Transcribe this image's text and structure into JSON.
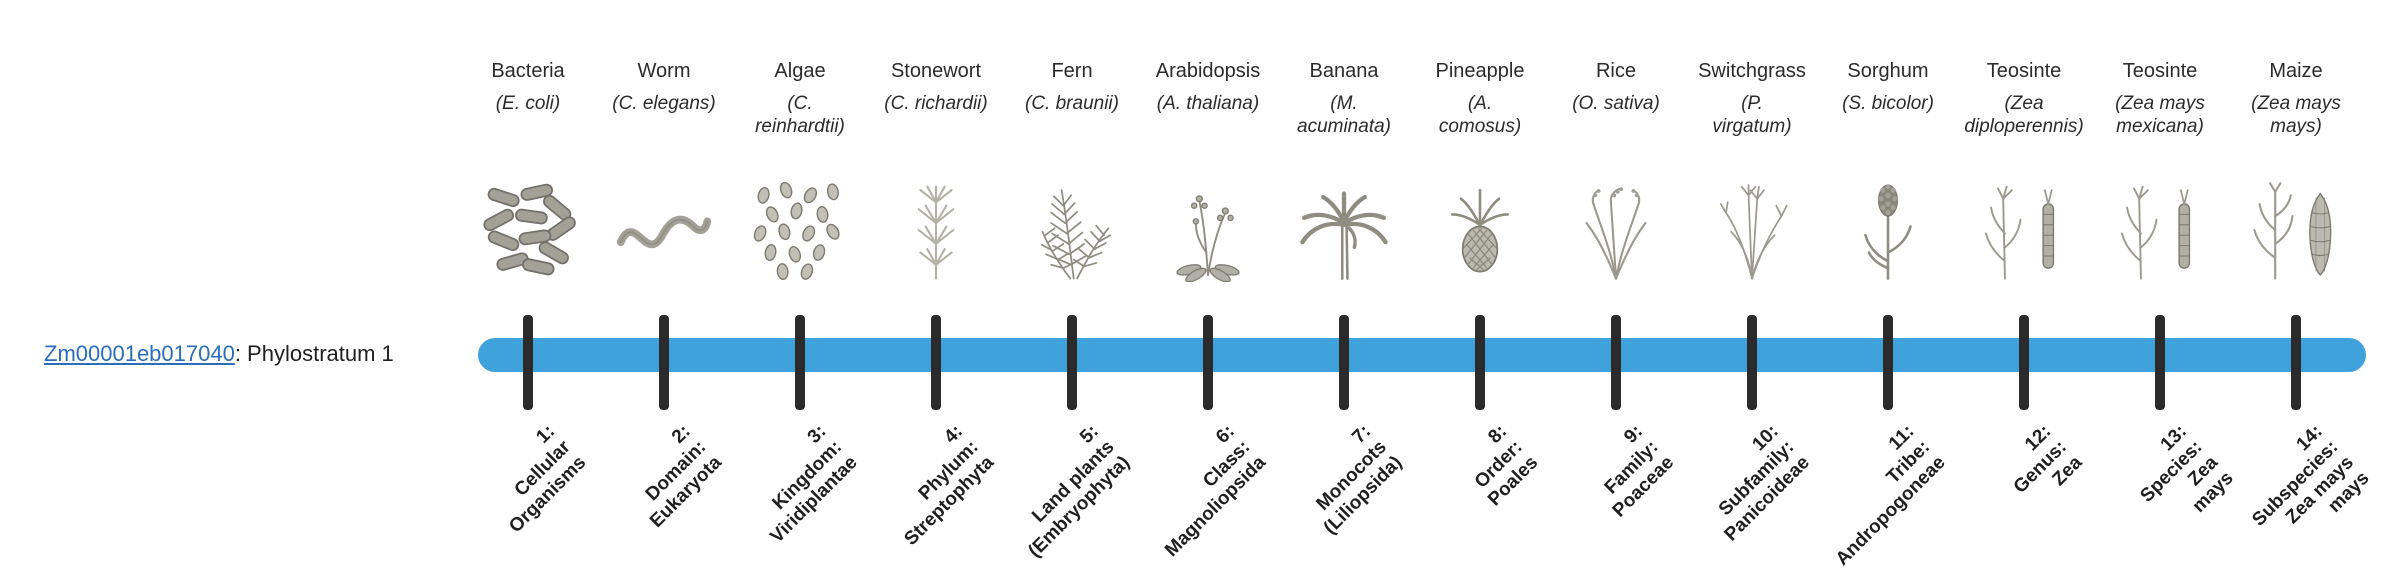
{
  "gene": {
    "id": "Zm00001eb017040",
    "phylostratum_text": ": Phylostratum 1"
  },
  "colors": {
    "bar": "#3FA2DC",
    "tick": "#2B2B2B",
    "link": "#2A6EBB"
  },
  "strata": [
    {
      "organism": "Bacteria",
      "scientific": "(E. coli)",
      "icon": "bacteria",
      "stratum_label": "1:\nCellular\nOrganisms"
    },
    {
      "organism": "Worm",
      "scientific": "(C. elegans)",
      "icon": "worm",
      "stratum_label": "2:\nDomain:\nEukaryota"
    },
    {
      "organism": "Algae",
      "scientific": "(C.\nreinhardtii)",
      "icon": "algae",
      "stratum_label": "3:\nKingdom:\nViridiplantae"
    },
    {
      "organism": "Stonewort",
      "scientific": "(C. richardii)",
      "icon": "stonewort",
      "stratum_label": "4:\nPhylum:\nStreptophyta"
    },
    {
      "organism": "Fern",
      "scientific": "(C. braunii)",
      "icon": "fern",
      "stratum_label": "5:\nLand plants\n(Embryophyta)"
    },
    {
      "organism": "Arabidopsis",
      "scientific": "(A. thaliana)",
      "icon": "arabidopsis",
      "stratum_label": "6:\nClass:\nMagnoliopsida"
    },
    {
      "organism": "Banana",
      "scientific": "(M.\nacuminata)",
      "icon": "banana",
      "stratum_label": "7:\nMonocots\n(Liliopsida)"
    },
    {
      "organism": "Pineapple",
      "scientific": "(A.\ncomosus)",
      "icon": "pineapple",
      "stratum_label": "8:\nOrder:\nPoales"
    },
    {
      "organism": "Rice",
      "scientific": "(O. sativa)",
      "icon": "rice",
      "stratum_label": "9:\nFamily:\nPoaceae"
    },
    {
      "organism": "Switchgrass",
      "scientific": "(P.\nvirgatum)",
      "icon": "switchgrass",
      "stratum_label": "10:\nSubfamily:\nPanicoideae"
    },
    {
      "organism": "Sorghum",
      "scientific": "(S. bicolor)",
      "icon": "sorghum",
      "stratum_label": "11:\nTribe:\nAndropogoneae"
    },
    {
      "organism": "Teosinte",
      "scientific": "(Zea\ndiploperennis)",
      "icon": "teosinte",
      "stratum_label": "12:\nGenus:\nZea"
    },
    {
      "organism": "Teosinte",
      "scientific": "(Zea mays\nmexicana)",
      "icon": "teosinte",
      "stratum_label": "13:\nSpecies:\nZea\nmays"
    },
    {
      "organism": "Maize",
      "scientific": "(Zea mays\nmays)",
      "icon": "maize",
      "stratum_label": "14:\nSubspecies:\nZea mays\nmays"
    }
  ]
}
